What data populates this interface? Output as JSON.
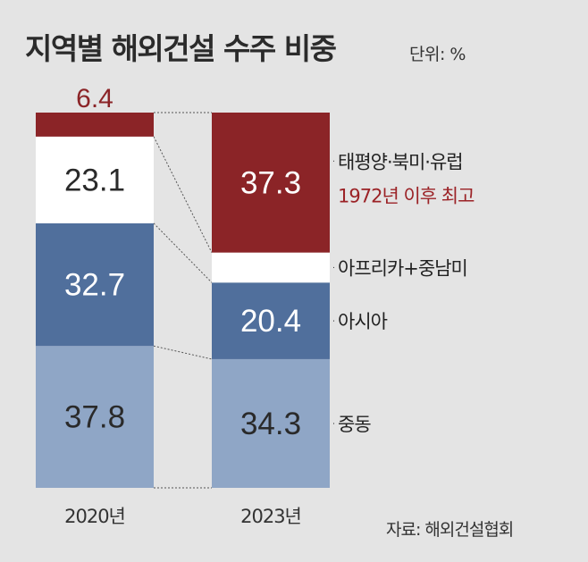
{
  "title": "지역별 해외건설 수주 비중",
  "unit": "단위: %",
  "source": "자료: 해외건설협회",
  "chart_data": {
    "type": "bar",
    "stacked": true,
    "categories": [
      "2020년",
      "2023년"
    ],
    "series": [
      {
        "name": "중동",
        "values": [
          37.8,
          34.3
        ],
        "color": "#8fa6c6",
        "label_color": "#2a2a2a"
      },
      {
        "name": "아시아",
        "values": [
          32.7,
          20.4
        ],
        "color": "#506f9c",
        "label_color": "#ffffff"
      },
      {
        "name": "아프리카+중남미",
        "values": [
          23.1,
          8.0
        ],
        "color": "#ffffff",
        "label_color": "#2a2a2a"
      },
      {
        "name": "태평양·북미·유럽",
        "values": [
          6.4,
          37.3
        ],
        "color": "#8b2427",
        "label_color": "#ffffff"
      }
    ],
    "annotations": [
      {
        "text": "1972년 이후 최고",
        "color": "#9b2226"
      }
    ],
    "legend": "right"
  }
}
